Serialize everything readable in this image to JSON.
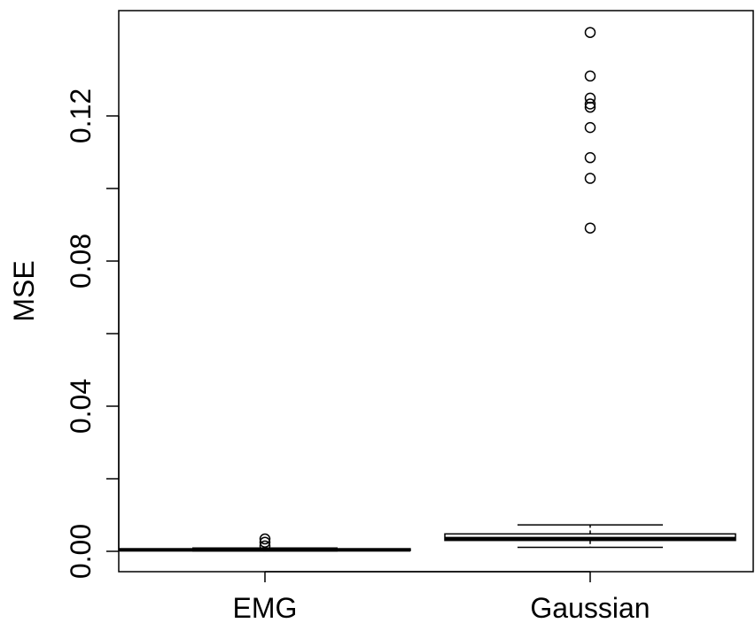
{
  "chart_data": {
    "type": "boxplot",
    "title": "",
    "xlabel": "",
    "ylabel": "MSE",
    "ylim": [
      -0.006,
      0.148
    ],
    "yticks": [
      0.0,
      0.04,
      0.08,
      0.12
    ],
    "ytick_labels": [
      "0.00",
      "0.04",
      "0.08",
      "0.12"
    ],
    "categories": [
      "EMG",
      "Gaussian"
    ],
    "boxes": [
      {
        "name": "EMG",
        "whisker_low": 0.0001,
        "q1": 0.0002,
        "median": 0.0004,
        "q3": 0.0007,
        "whisker_high": 0.0009,
        "outliers": [
          0.0015,
          0.0025,
          0.0034
        ]
      },
      {
        "name": "Gaussian",
        "whisker_low": 0.0011,
        "q1": 0.003,
        "median": 0.0035,
        "q3": 0.0048,
        "whisker_high": 0.0073,
        "outliers": [
          0.0891,
          0.1028,
          0.1085,
          0.1168,
          0.1224,
          0.1233,
          0.1249,
          0.131,
          0.143
        ]
      }
    ],
    "grid": false,
    "colors": {
      "stroke": "#000000",
      "fill": "#ffffff"
    }
  }
}
